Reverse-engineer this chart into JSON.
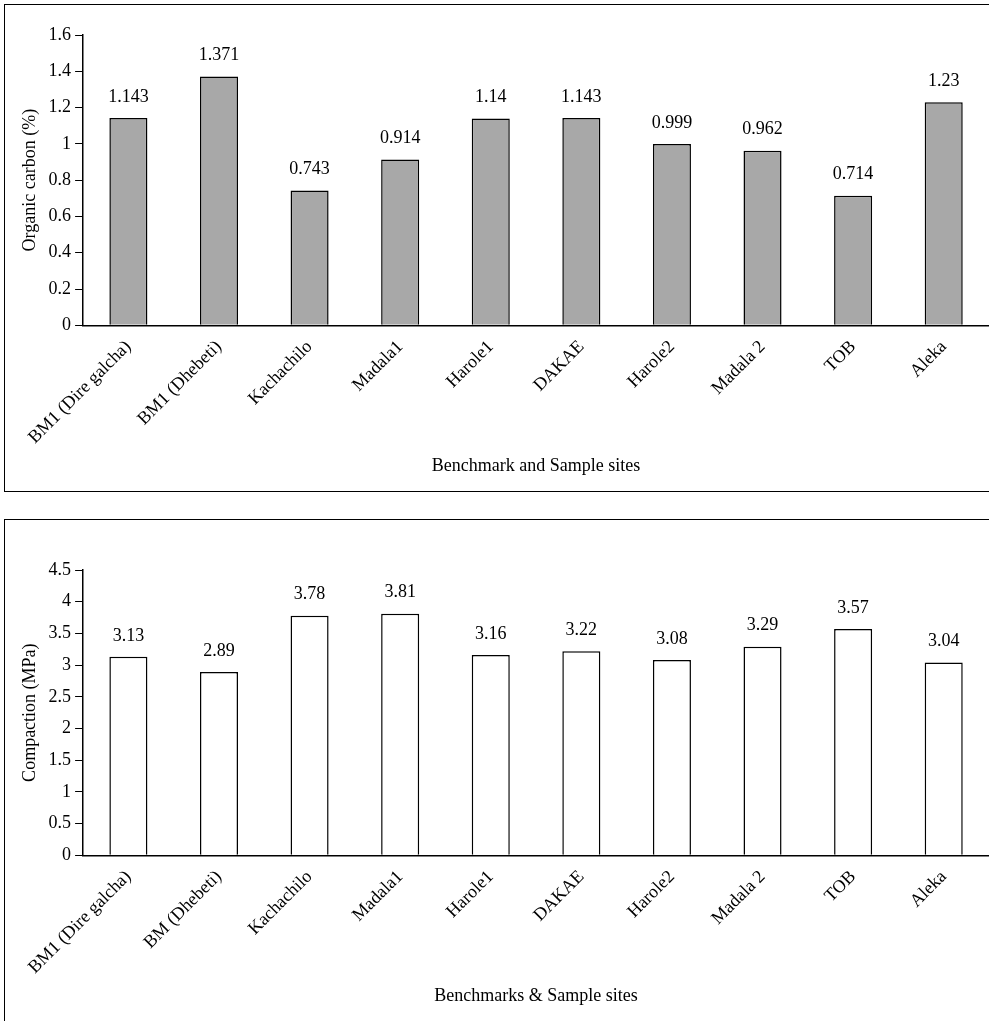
{
  "chart_data": [
    {
      "type": "bar",
      "xlabel": "Benchmark and Sample sites",
      "ylabel": "Organic carbon (%)",
      "categories": [
        "BM1 (Dire galcha)",
        "BM1 (Dhebeti)",
        "Kachachilo",
        "Madala1",
        "Harole1",
        "DAKAE",
        "Harole2",
        "Madala 2",
        "TOB",
        "Aleka"
      ],
      "values": [
        1.143,
        1.371,
        0.743,
        0.914,
        1.14,
        1.143,
        0.999,
        0.962,
        0.714,
        1.23
      ],
      "color": "#a8a8a8",
      "ylim": [
        0,
        1.6
      ],
      "yticks": [
        0,
        0.2,
        0.4,
        0.6,
        0.8,
        1,
        1.2,
        1.4,
        1.6
      ],
      "grid": false,
      "legend": false,
      "data_labels": true
    },
    {
      "type": "bar",
      "xlabel": "Benchmarks & Sample sites",
      "ylabel": "Compaction (MPa)",
      "categories": [
        "BM1 (Dire galcha)",
        "BM (Dhebeti)",
        "Kachachilo",
        "Madala1",
        "Harole1",
        "DAKAE",
        "Harole2",
        "Madala 2",
        "TOB",
        "Aleka"
      ],
      "values": [
        3.13,
        2.89,
        3.78,
        3.81,
        3.16,
        3.22,
        3.08,
        3.29,
        3.57,
        3.04
      ],
      "color": "#ffffff",
      "ylim": [
        0,
        4.5
      ],
      "yticks": [
        0,
        0.5,
        1,
        1.5,
        2,
        2.5,
        3,
        3.5,
        4,
        4.5
      ],
      "grid": false,
      "legend": false,
      "data_labels": true
    }
  ]
}
